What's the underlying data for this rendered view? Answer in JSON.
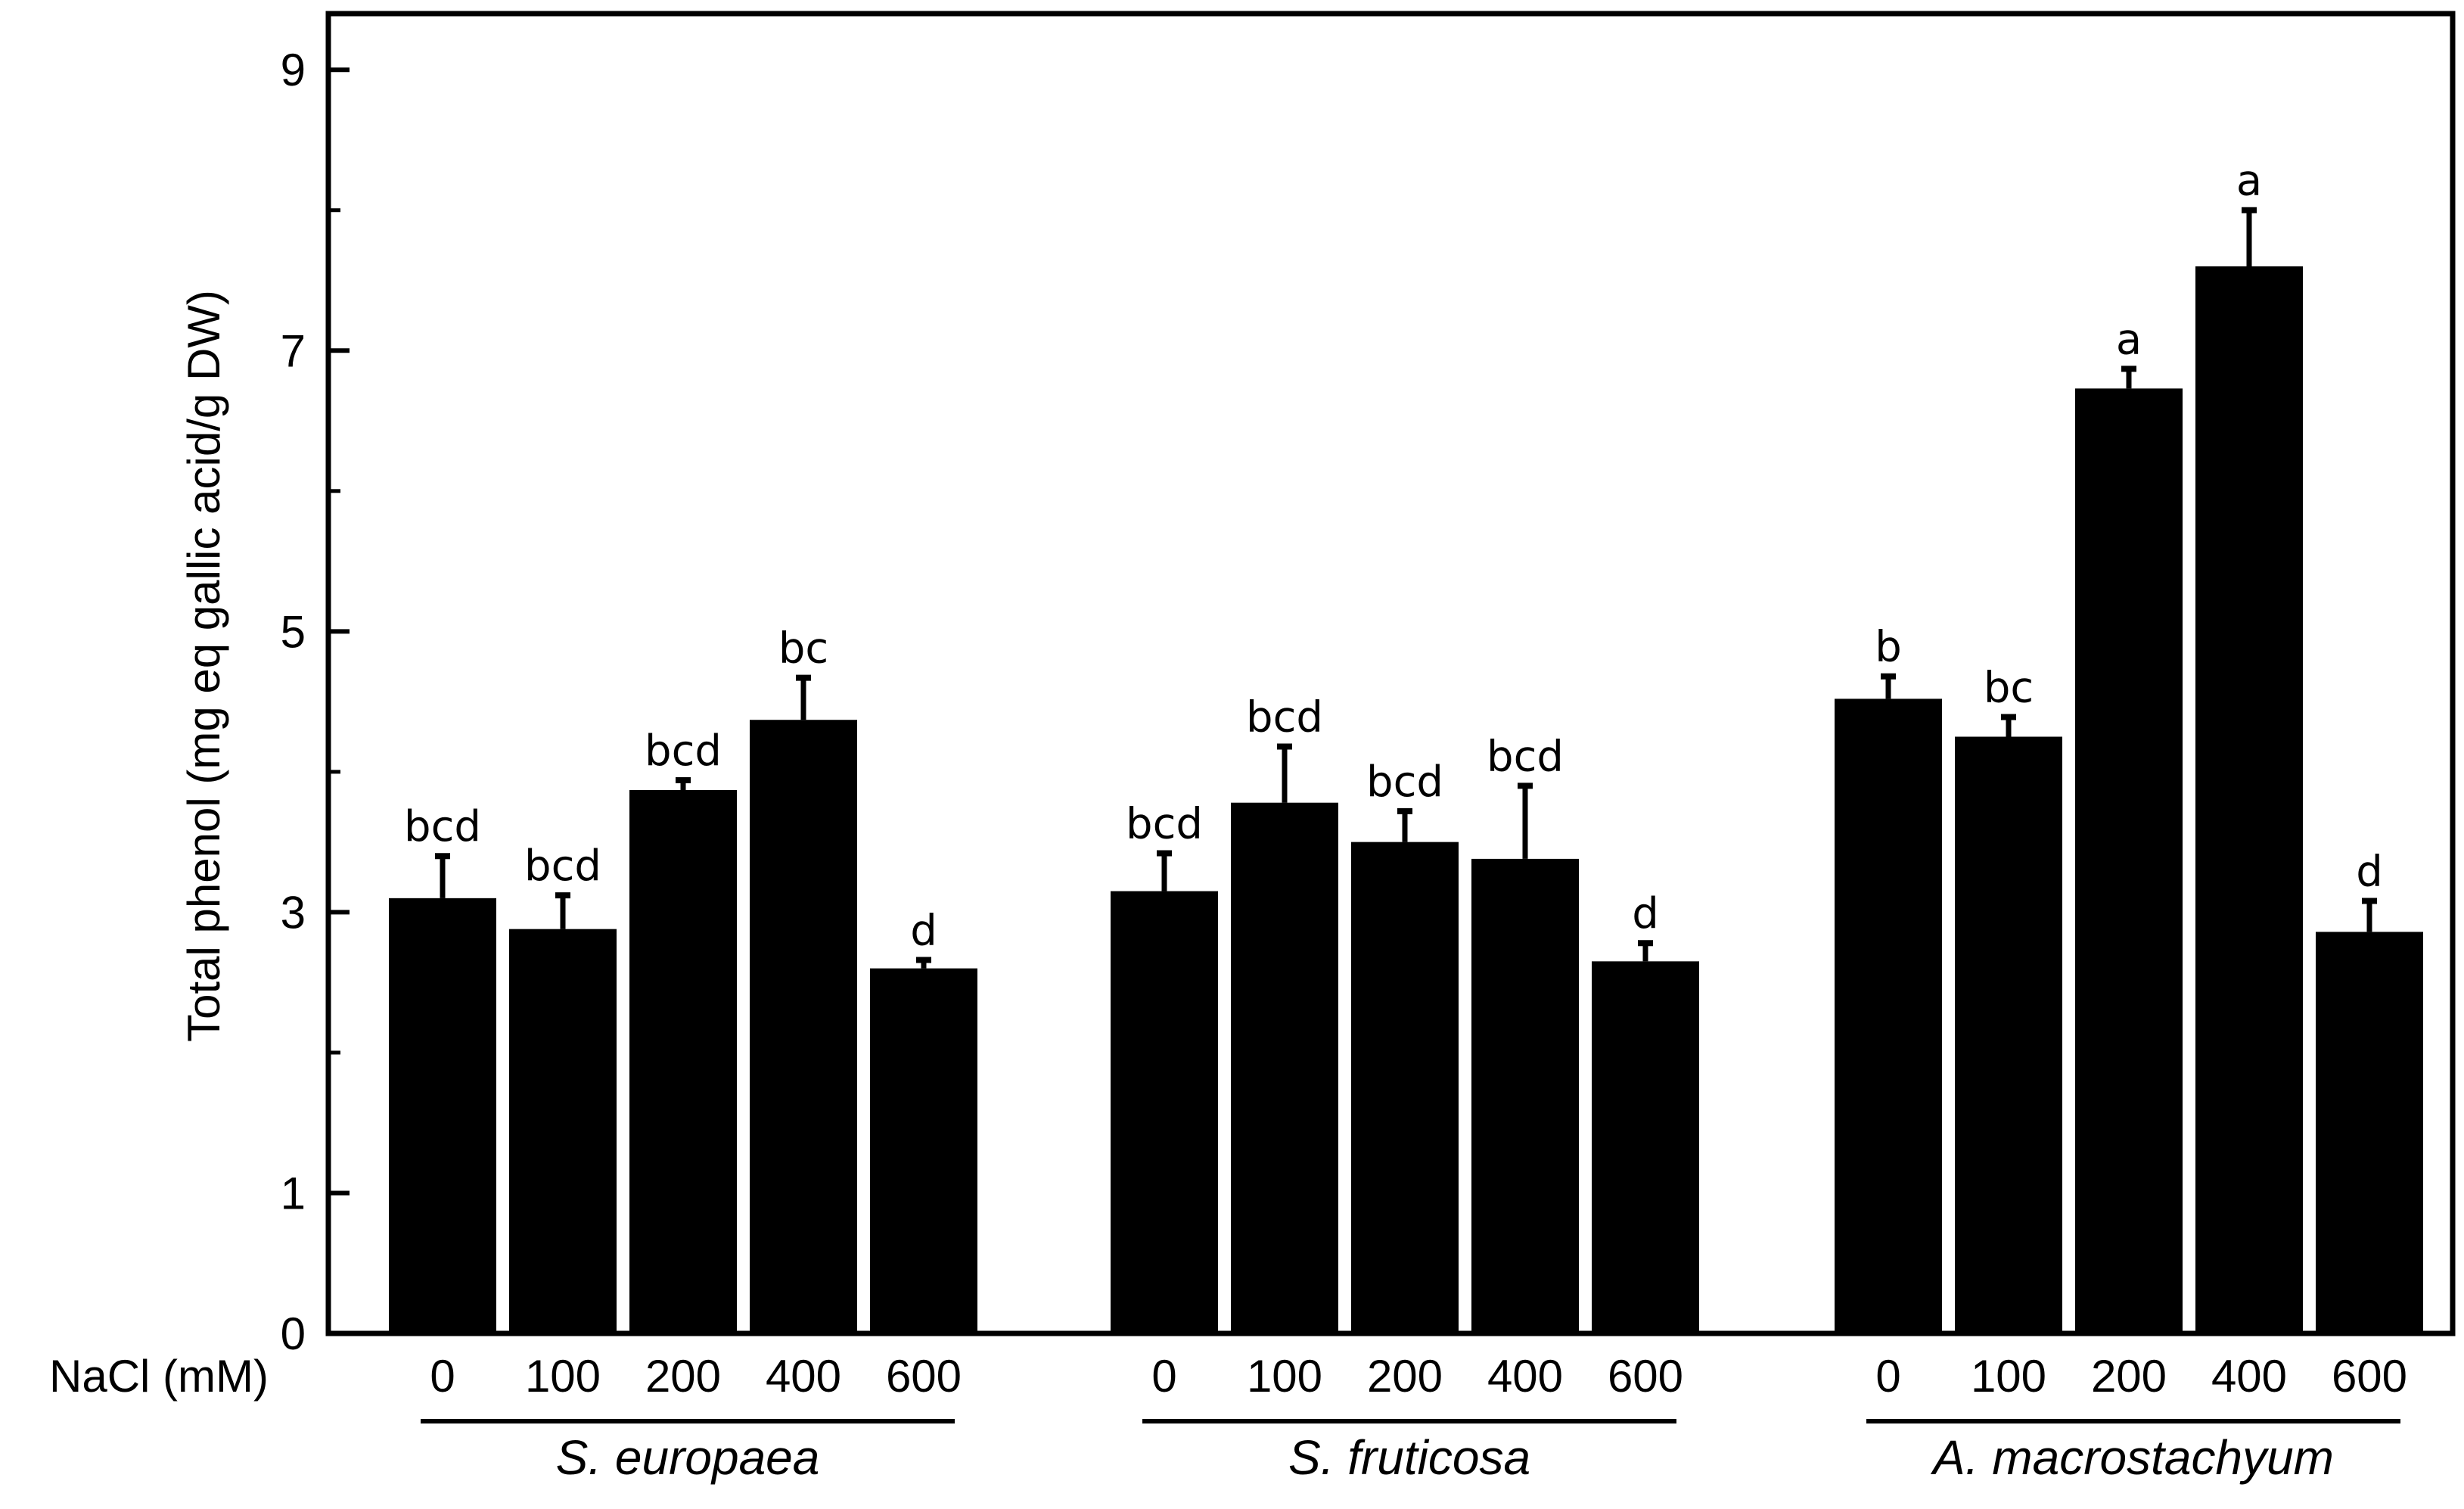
{
  "chart_data": {
    "type": "bar",
    "title": "",
    "ylabel": "Total phenol (mg eq gallic acid/g DW)",
    "xlabel_prefix": "NaCl (mM)",
    "ylim": [
      0,
      9.4
    ],
    "yticks": [
      0,
      1,
      3,
      5,
      7,
      9
    ],
    "grid": false,
    "bar_color": "#000000",
    "groups": [
      {
        "name": "S. europaea",
        "categories": [
          "0",
          "100",
          "200",
          "400",
          "600"
        ],
        "values": [
          3.1,
          2.88,
          3.87,
          4.37,
          2.6
        ],
        "errors": [
          0.3,
          0.24,
          0.07,
          0.3,
          0.06
        ],
        "labels": [
          "bcd",
          "bcd",
          "bcd",
          "bc",
          "d"
        ]
      },
      {
        "name": "S. fruticosa",
        "categories": [
          "0",
          "100",
          "200",
          "400",
          "600"
        ],
        "values": [
          3.15,
          3.78,
          3.5,
          3.38,
          2.65
        ],
        "errors": [
          0.27,
          0.4,
          0.22,
          0.52,
          0.13
        ],
        "labels": [
          "bcd",
          "bcd",
          "bcd",
          "bcd",
          "d"
        ]
      },
      {
        "name": "A. macrostachyum",
        "categories": [
          "0",
          "100",
          "200",
          "400",
          "600"
        ],
        "values": [
          4.52,
          4.25,
          6.73,
          7.6,
          2.86
        ],
        "errors": [
          0.16,
          0.14,
          0.14,
          0.4,
          0.22
        ],
        "labels": [
          "b",
          "bc",
          "a",
          "a",
          "d"
        ]
      }
    ]
  }
}
